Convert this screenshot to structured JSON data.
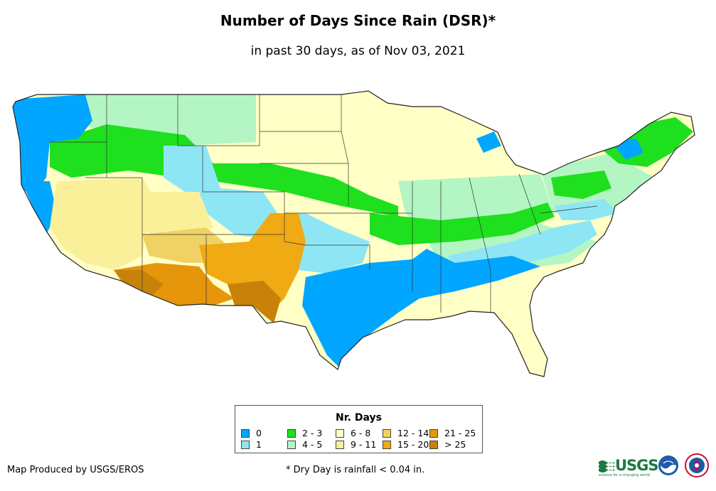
{
  "header": {
    "title": "Number of Days Since Rain (DSR)*",
    "subtitle": "in past 30 days, as of Nov 03, 2021"
  },
  "legend": {
    "title": "Nr. Days",
    "items": [
      {
        "label": "0",
        "color": "#00a6ff"
      },
      {
        "label": "1",
        "color": "#8ee6f5"
      },
      {
        "label": "2 - 3",
        "color": "#1ee01e"
      },
      {
        "label": "4 - 5",
        "color": "#b4f5c4"
      },
      {
        "label": "6 - 8",
        "color": "#ffffc6"
      },
      {
        "label": "9 - 11",
        "color": "#faf09a"
      },
      {
        "label": "12 - 14",
        "color": "#f0d264"
      },
      {
        "label": "15 - 20",
        "color": "#f0aa14"
      },
      {
        "label": "21 - 25",
        "color": "#e6960a"
      },
      {
        "label": "> 25",
        "color": "#c8820a"
      }
    ]
  },
  "footer": {
    "credit": "Map Produced by USGS/EROS",
    "note": "* Dry Day is rainfall < 0.04 in."
  },
  "logos": {
    "usgs": "USGS",
    "usgs_tagline": "science for a changing world"
  }
}
